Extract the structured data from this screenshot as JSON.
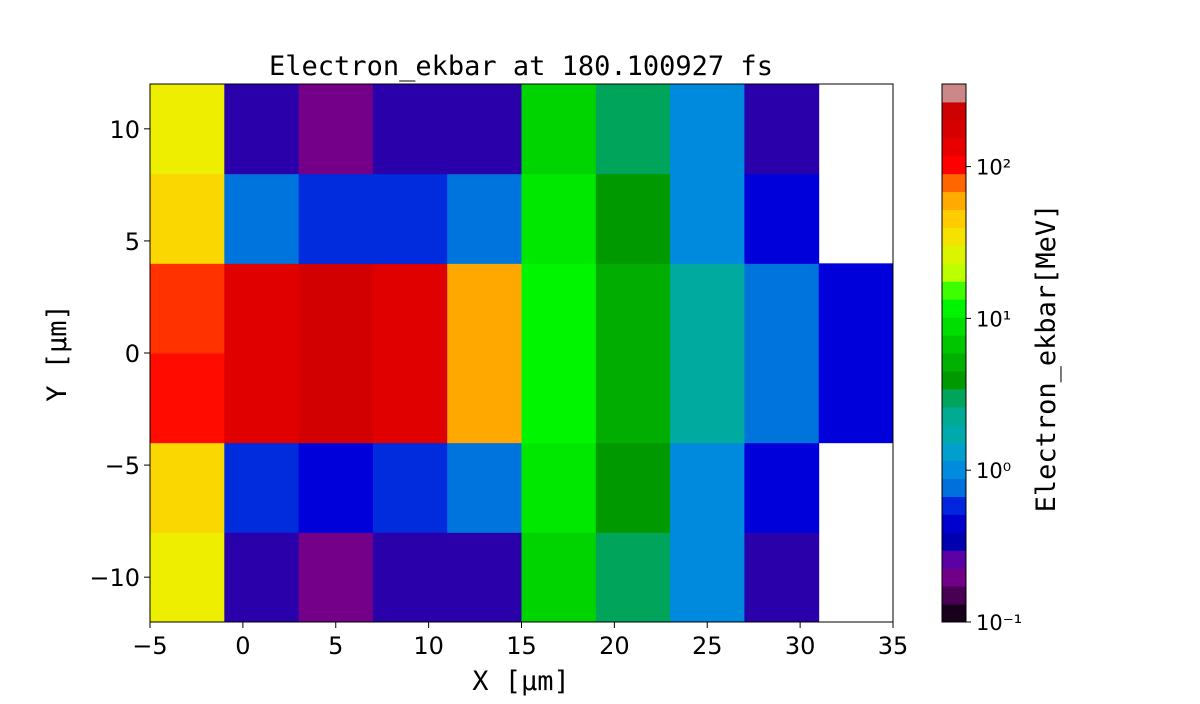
{
  "chart_data": {
    "type": "heatmap",
    "title": "Electron_ekbar at 180.100927 fs",
    "x_label": "X  [μm]",
    "y_label": "Y  [μm]",
    "colorbar_label": "Electron_ekbar[MeV]",
    "colormap": "nipy_spectral",
    "x": [
      -3,
      1,
      5,
      9,
      13,
      17,
      21,
      25,
      29,
      33
    ],
    "y": [
      -10,
      -6,
      -2,
      2,
      6,
      10
    ],
    "z": [
      [
        30,
        0.3,
        0.2,
        0.3,
        0.3,
        8,
        3,
        1,
        0.3,
        null
      ],
      [
        40,
        0.6,
        0.5,
        0.6,
        0.8,
        10,
        4,
        1,
        0.5,
        null
      ],
      [
        100,
        150,
        200,
        150,
        60,
        12,
        5,
        2,
        0.8,
        0.5
      ],
      [
        90,
        150,
        200,
        150,
        60,
        12,
        5,
        2,
        0.8,
        0.5
      ],
      [
        40,
        0.8,
        0.6,
        0.6,
        0.8,
        10,
        4,
        1,
        0.5,
        null
      ],
      [
        30,
        0.3,
        0.2,
        0.3,
        0.3,
        8,
        3,
        1,
        0.3,
        null
      ]
    ],
    "xlim": [
      -5,
      35
    ],
    "ylim": [
      -12,
      12
    ],
    "xticks": [
      {
        "value": -5,
        "label": "−5"
      },
      0,
      5,
      10,
      15,
      20,
      25,
      30,
      35
    ],
    "yticks": [
      {
        "value": -10,
        "label": "−10"
      },
      {
        "value": -5,
        "label": "−5"
      },
      0,
      5,
      10
    ],
    "clim": [
      0.1,
      350
    ],
    "c_log_scale": true,
    "cticks": [
      {
        "value": 0.1,
        "label": "10⁻¹"
      },
      {
        "value": 1,
        "label": "10⁰"
      },
      {
        "value": 10,
        "label": "10¹"
      },
      {
        "value": 100,
        "label": "10²"
      }
    ]
  }
}
